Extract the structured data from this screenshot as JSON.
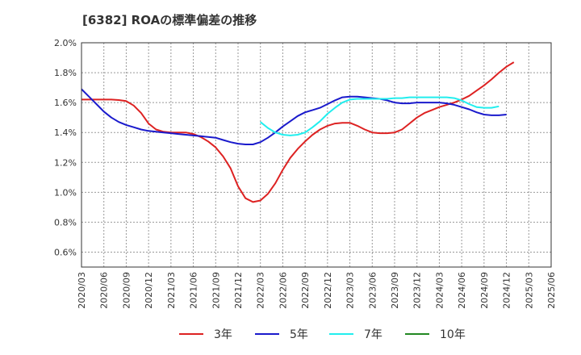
{
  "chart_data": {
    "type": "line",
    "title": "[6382]  ROAの標準偏差の推移",
    "xlabel": "",
    "ylabel": "",
    "ylim": [
      0.5,
      2.0
    ],
    "y_ticks": [
      "0.6%",
      "0.8%",
      "1.0%",
      "1.2%",
      "1.4%",
      "1.6%",
      "1.8%",
      "2.0%"
    ],
    "y_tick_values": [
      0.6,
      0.8,
      1.0,
      1.2,
      1.4,
      1.6,
      1.8,
      2.0
    ],
    "x_ticks": [
      "2020/03",
      "2020/06",
      "2020/09",
      "2020/12",
      "2021/03",
      "2021/06",
      "2021/09",
      "2021/12",
      "2022/03",
      "2022/06",
      "2022/09",
      "2022/12",
      "2023/03",
      "2023/06",
      "2023/09",
      "2023/12",
      "2024/03",
      "2024/06",
      "2024/09",
      "2024/12",
      "2025/03",
      "2025/06"
    ],
    "grid": true,
    "legend_position": "bottom",
    "series": [
      {
        "name": "3年",
        "color": "#dd2222",
        "start": "2020/03",
        "values": [
          1.62,
          1.62,
          1.62,
          1.62,
          1.62,
          1.617,
          1.61,
          1.58,
          1.53,
          1.46,
          1.42,
          1.405,
          1.4,
          1.4,
          1.4,
          1.39,
          1.37,
          1.34,
          1.3,
          1.24,
          1.16,
          1.04,
          0.96,
          0.935,
          0.945,
          0.99,
          1.06,
          1.15,
          1.23,
          1.29,
          1.34,
          1.385,
          1.42,
          1.445,
          1.46,
          1.465,
          1.465,
          1.445,
          1.42,
          1.4,
          1.395,
          1.395,
          1.4,
          1.42,
          1.46,
          1.5,
          1.53,
          1.55,
          1.57,
          1.585,
          1.6,
          1.62,
          1.645,
          1.68,
          1.715,
          1.755,
          1.8,
          1.84,
          1.87
        ]
      },
      {
        "name": "5年",
        "color": "#1a1acc",
        "start": "2020/03",
        "values": [
          1.69,
          1.64,
          1.59,
          1.54,
          1.5,
          1.47,
          1.45,
          1.435,
          1.42,
          1.41,
          1.405,
          1.4,
          1.395,
          1.39,
          1.385,
          1.38,
          1.375,
          1.37,
          1.365,
          1.35,
          1.335,
          1.325,
          1.32,
          1.32,
          1.335,
          1.365,
          1.4,
          1.44,
          1.475,
          1.51,
          1.535,
          1.55,
          1.565,
          1.59,
          1.615,
          1.635,
          1.64,
          1.64,
          1.635,
          1.63,
          1.625,
          1.615,
          1.6,
          1.595,
          1.595,
          1.6,
          1.6,
          1.6,
          1.6,
          1.595,
          1.585,
          1.57,
          1.555,
          1.535,
          1.52,
          1.515,
          1.515,
          1.52
        ]
      },
      {
        "name": "7年",
        "color": "#22eeee",
        "start": "2022/03",
        "values": [
          1.47,
          1.43,
          1.4,
          1.385,
          1.38,
          1.385,
          1.4,
          1.435,
          1.475,
          1.525,
          1.565,
          1.6,
          1.62,
          1.625,
          1.625,
          1.625,
          1.625,
          1.625,
          1.63,
          1.63,
          1.635,
          1.635,
          1.635,
          1.635,
          1.635,
          1.635,
          1.63,
          1.615,
          1.59,
          1.57,
          1.565,
          1.565,
          1.575
        ]
      },
      {
        "name": "10年",
        "color": "#228822",
        "start": "2020/03",
        "values": []
      }
    ]
  }
}
